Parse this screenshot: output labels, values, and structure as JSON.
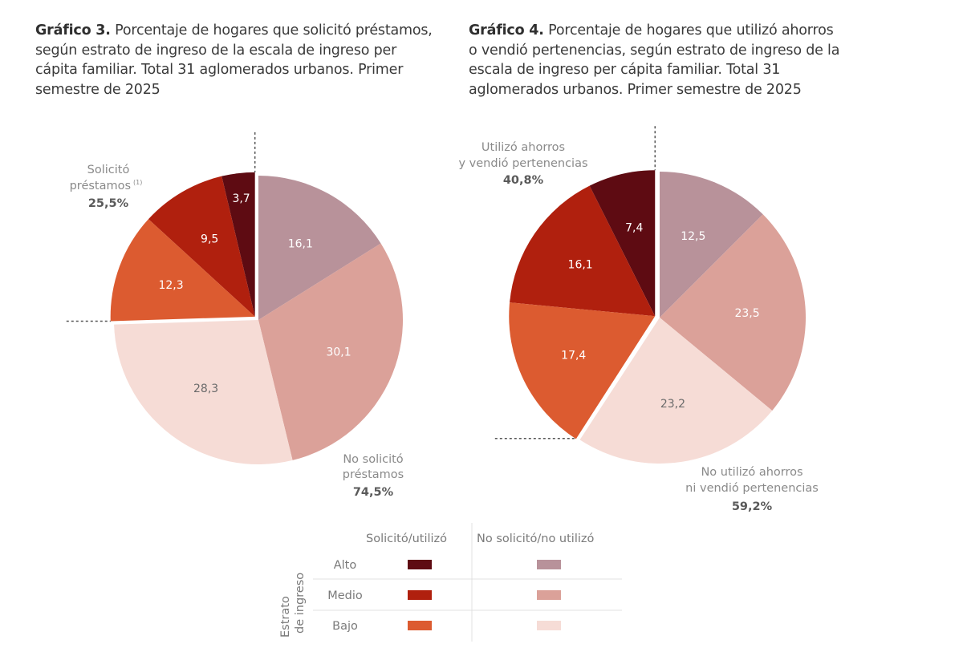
{
  "chart_data": [
    {
      "type": "pie",
      "id": "grafico3",
      "title_bold": "Gráfico 3.",
      "title": "Porcentaje de hogares que solicitó préstamos, según estrato de ingreso de la escala de ingreso per cápita familiar. Total 31 aglomerados urbanos. Primer semestre de 2025",
      "unit": "%",
      "groups": [
        {
          "name": "Solicitó préstamos",
          "footnote": "(1)",
          "total_label": "25,5%",
          "total": 25.5,
          "exploded": true,
          "slices": [
            {
              "estrato": "Alto",
              "value": 3.7,
              "label": "3,7",
              "color": "#5e0b12"
            },
            {
              "estrato": "Medio",
              "value": 9.5,
              "label": "9,5",
              "color": "#b0200e"
            },
            {
              "estrato": "Bajo",
              "value": 12.3,
              "label": "12,3",
              "color": "#dc5b30"
            }
          ]
        },
        {
          "name": "No solicitó préstamos",
          "total_label": "74,5%",
          "total": 74.5,
          "exploded": false,
          "slices": [
            {
              "estrato": "Alto",
              "value": 16.1,
              "label": "16,1",
              "color": "#b8929a"
            },
            {
              "estrato": "Medio",
              "value": 30.1,
              "label": "30,1",
              "color": "#dba199"
            },
            {
              "estrato": "Bajo",
              "value": 28.3,
              "label": "28,3",
              "color": "#f6dcd6"
            }
          ]
        }
      ],
      "annotation_lines": {
        "group1": [
          "Solicitó",
          "préstamos"
        ],
        "group2": [
          "No solicitó",
          "préstamos"
        ]
      }
    },
    {
      "type": "pie",
      "id": "grafico4",
      "title_bold": "Gráfico 4.",
      "title": "Porcentaje de hogares que utilizó ahorros o vendió pertenencias, según estrato de ingreso de la escala de ingreso per cápita familiar. Total 31 aglomerados urbanos. Primer semestre de 2025",
      "unit": "%",
      "groups": [
        {
          "name": "Utilizó ahorros y vendió pertenencias",
          "total_label": "40,8%",
          "total": 40.8,
          "exploded": true,
          "slices": [
            {
              "estrato": "Alto",
              "value": 7.4,
              "label": "7,4",
              "color": "#5e0b12"
            },
            {
              "estrato": "Medio",
              "value": 16.1,
              "label": "16,1",
              "color": "#b0200e"
            },
            {
              "estrato": "Bajo",
              "value": 17.4,
              "label": "17,4",
              "color": "#dc5b30"
            }
          ]
        },
        {
          "name": "No utilizó ahorros ni vendió pertenencias",
          "total_label": "59,2%",
          "total": 59.2,
          "exploded": false,
          "slices": [
            {
              "estrato": "Alto",
              "value": 12.5,
              "label": "12,5",
              "color": "#b8929a"
            },
            {
              "estrato": "Medio",
              "value": 23.5,
              "label": "23,5",
              "color": "#dba199"
            },
            {
              "estrato": "Bajo",
              "value": 23.2,
              "label": "23,2",
              "color": "#f6dcd6"
            }
          ]
        }
      ],
      "annotation_lines": {
        "group1": [
          "Utilizó ahorros",
          "y vendió pertenencias"
        ],
        "group2": [
          "No utilizó ahorros",
          "ni vendió pertenencias"
        ]
      }
    }
  ],
  "titles": {
    "g3_bold": "Gráfico 3.",
    "g3_text": " Porcentaje de hogares que solicitó préstamos, según estrato de ingreso de la escala de ingreso per cápita familiar. Total 31 aglomerados urbanos. Primer semestre de 2025",
    "g4_bold": "Gráfico 4.",
    "g4_text": " Porcentaje de hogares que utilizó ahorros o vendió pertenencias, según estrato de ingreso de la escala de ingreso per cápita familiar. Total 31 aglomerados urbanos. Primer semestre de 2025"
  },
  "legend": {
    "axis_title_line1": "Estrato",
    "axis_title_line2": "de ingreso",
    "col1": "Solicitó/utilizó",
    "col2": "No solicitó/no utilizó",
    "rows": [
      {
        "label": "Alto",
        "color1": "#5e0b12",
        "color2": "#b8929a"
      },
      {
        "label": "Medio",
        "color1": "#b0200e",
        "color2": "#dba199"
      },
      {
        "label": "Bajo",
        "color1": "#dc5b30",
        "color2": "#f6dcd6"
      }
    ]
  }
}
